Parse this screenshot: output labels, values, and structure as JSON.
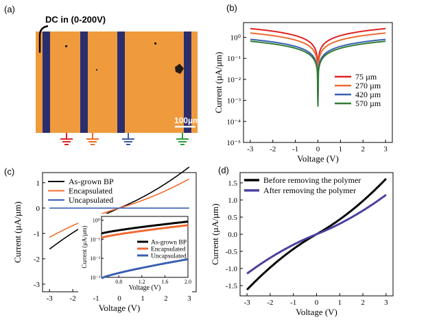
{
  "figure": {
    "panel_labels": [
      "(a)",
      "(b)",
      "(c)",
      "(d)"
    ]
  },
  "panel_a": {
    "dc_label": "DC in (0-200V)",
    "scale_label": "100µm",
    "colors": {
      "substrate": "#ef9a3c",
      "electrode": "#2b2e6e",
      "grounds": [
        "#e02020",
        "#ea6a28",
        "#3a5aa8",
        "#2e9a3a"
      ]
    }
  },
  "chart_data": [
    {
      "id": "b",
      "type": "line",
      "yscale": "log",
      "xlabel": "Voltage (V)",
      "ylabel": "Current (µA/µm)",
      "xlim": [
        -3.3,
        3.3
      ],
      "ylim_exp": [
        -5,
        0.7
      ],
      "xticks": [
        -3,
        -2,
        -1,
        0,
        1,
        2,
        3
      ],
      "yticks_exp": [
        -5,
        -4,
        -3,
        -2,
        -1,
        0
      ],
      "legend_position": "bottom-right",
      "series": [
        {
          "name": "75 µm",
          "color": "#e02020",
          "peak": 2.6
        },
        {
          "name": "270 µm",
          "color": "#ef6a30",
          "peak": 1.6
        },
        {
          "name": "420 µm",
          "color": "#3a5fb0",
          "peak": 0.8
        },
        {
          "name": "570 µm",
          "color": "#2e7d32",
          "peak": 0.65
        }
      ]
    },
    {
      "id": "c",
      "type": "line",
      "xlabel": "Voltage (V)",
      "ylabel": "Current (µA/µm)",
      "xlim": [
        -3.3,
        3.3
      ],
      "ylim": [
        -3.3,
        1.4
      ],
      "xticks": [
        -3,
        -2,
        -1,
        0,
        1,
        2,
        3
      ],
      "yticks": [
        -3,
        -2,
        -1,
        0,
        1
      ],
      "legend_position": "top-left",
      "series": [
        {
          "name": "As-grown BP",
          "color": "#000000",
          "y_at_3": 1.62,
          "y_at_m3": -1.62
        },
        {
          "name": "Encapsulated",
          "color": "#ef6a30",
          "y_at_3": 1.15,
          "y_at_m3": -1.15
        },
        {
          "name": "Uncapsulated",
          "color": "#3a5fb0",
          "y_at_3": 0.0,
          "y_at_m3": 0.0
        }
      ],
      "inset": {
        "xlabel": "Voltage (V)",
        "ylabel": "Current (µA/µm)",
        "xlim": [
          0.5,
          2.0
        ],
        "ylim_exp": [
          -3,
          0.2
        ],
        "xticks": [
          "0.8",
          "1.2",
          "1.6",
          "2.0"
        ],
        "yticks": [
          "10⁰",
          "10⁻¹",
          "10⁻²",
          "10⁻³"
        ],
        "series": [
          {
            "name": "As-grown BP",
            "color": "#000000",
            "start": 0.2,
            "end": 0.85
          },
          {
            "name": "Encapsulated",
            "color": "#ef6a30",
            "start": 0.12,
            "end": 0.55
          },
          {
            "name": "Uncapsulated",
            "color": "#3a5fb0",
            "start": 0.0009,
            "end": 0.009
          }
        ]
      }
    },
    {
      "id": "d",
      "type": "line",
      "xlabel": "Voltage (V)",
      "ylabel": "Current (µA/µm)",
      "xlim": [
        -3.3,
        3.3
      ],
      "ylim": [
        -1.8,
        1.8
      ],
      "xticks": [
        -3,
        -2,
        -1,
        0,
        1,
        2,
        3
      ],
      "yticks": [
        "-1.5",
        "-1.0",
        "-0.5",
        "0.0",
        "0.5",
        "1.0",
        "1.5"
      ],
      "legend_position": "top-left",
      "series": [
        {
          "name": "Before removing the polymer",
          "color": "#000000",
          "y_at_3": 1.62
        },
        {
          "name": "After removing the polymer",
          "color": "#4a3fa0",
          "y_at_3": 1.15
        }
      ]
    }
  ]
}
